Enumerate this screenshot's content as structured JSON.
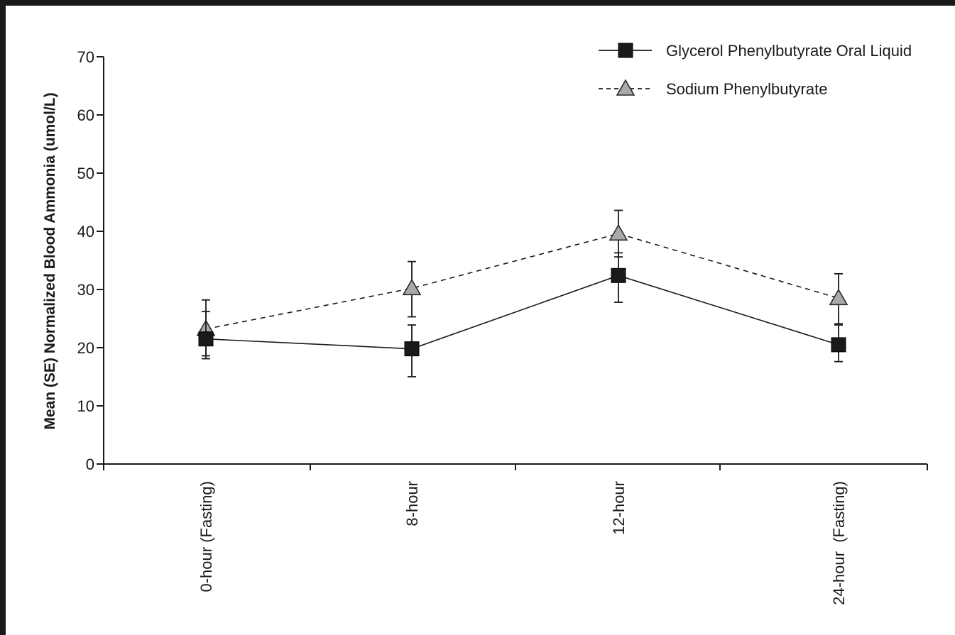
{
  "chart_data": {
    "type": "line",
    "categories": [
      "0-hour (Fasting)",
      "8-hour",
      "12-hour",
      "24-hour  (Fasting)"
    ],
    "ylabel": "Mean (SE) Normalized Blood Ammonia (umol/L)",
    "xlabel": "",
    "ylim": [
      0,
      70
    ],
    "yticks": [
      0,
      10,
      20,
      30,
      40,
      50,
      60,
      70
    ],
    "grid": false,
    "legend_position": "top-right",
    "series": [
      {
        "name": "Glycerol Phenylbutyrate Oral Liquid",
        "line_style": "solid",
        "marker": "square",
        "color": "#1a1a1a",
        "values": [
          21.5,
          19.8,
          32.4,
          20.5
        ],
        "err_low": [
          18.1,
          15.0,
          27.8,
          17.6
        ],
        "err_high": [
          26.2,
          23.9,
          36.3,
          23.9
        ]
      },
      {
        "name": "Sodium Phenylbutyrate",
        "line_style": "dashed",
        "marker": "triangle",
        "color": "#a9a9a9",
        "values": [
          23.2,
          30.2,
          39.6,
          28.5
        ],
        "err_low": [
          18.6,
          25.3,
          35.6,
          24.1
        ],
        "err_high": [
          28.2,
          34.8,
          43.6,
          32.7
        ]
      }
    ]
  }
}
